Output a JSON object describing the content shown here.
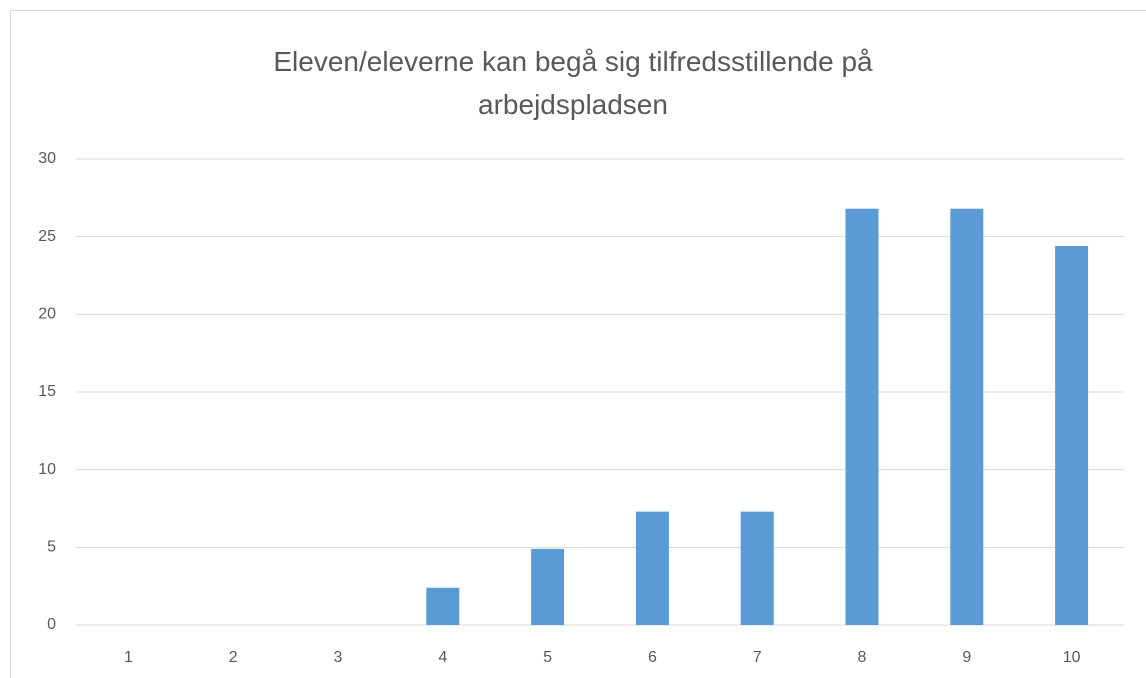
{
  "chart_data": {
    "type": "bar",
    "title": "Eleven/eleverne kan begå sig tilfredsstillende på arbejdspladsen",
    "categories": [
      "1",
      "2",
      "3",
      "4",
      "5",
      "6",
      "7",
      "8",
      "9",
      "10"
    ],
    "values": [
      0,
      0,
      0,
      2.4,
      4.9,
      7.3,
      7.3,
      26.8,
      26.8,
      24.4
    ],
    "color": "#5b9bd5",
    "ylim": [
      0,
      30
    ],
    "yticks": [
      0,
      5,
      10,
      15,
      20,
      25,
      30
    ],
    "grid": true
  }
}
